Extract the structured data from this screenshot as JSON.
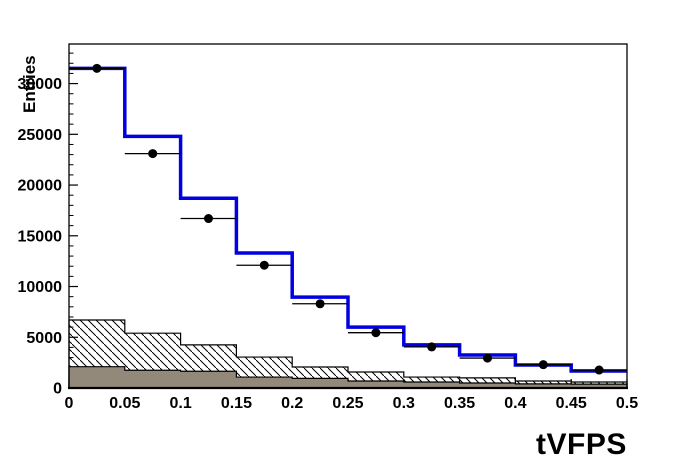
{
  "chart_data": {
    "type": "bar",
    "subtype": "step-histogram-overlay",
    "title": "tVFPS",
    "ylabel": "Entries",
    "xlabel": "",
    "xlim": [
      0,
      0.5
    ],
    "ylim": [
      0,
      33900
    ],
    "grid": false,
    "legend": "none",
    "bin_edges": [
      0,
      0.05,
      0.1,
      0.15,
      0.2,
      0.25,
      0.3,
      0.35,
      0.4,
      0.45,
      0.5
    ],
    "x_major_ticks": [
      0,
      0.05,
      0.1,
      0.15,
      0.2,
      0.25,
      0.3,
      0.35,
      0.4,
      0.45,
      0.5
    ],
    "x_tick_labels": [
      "0",
      "0.05",
      "0.1",
      "0.15",
      "0.2",
      "0.25",
      "0.3",
      "0.35",
      "0.4",
      "0.45",
      "0.5"
    ],
    "x_minor_step": 0.01,
    "y_major_ticks": [
      0,
      5000,
      10000,
      15000,
      20000,
      25000,
      30000
    ],
    "y_tick_labels": [
      "0",
      "5000",
      "10000",
      "15000",
      "20000",
      "25000",
      "30000"
    ],
    "y_minor_step": 1000,
    "series": [
      {
        "name": "hatched-histogram",
        "style": "step-fill-hatch",
        "hatch_color": "#000000",
        "outline_color": "#000000",
        "values": [
          6700,
          5400,
          4250,
          3050,
          2070,
          1580,
          1080,
          1000,
          690,
          590
        ]
      },
      {
        "name": "solid-histogram",
        "style": "step-fill",
        "fill_color": "#92897a",
        "outline_color": "#000000",
        "values": [
          2100,
          1750,
          1650,
          1080,
          950,
          690,
          590,
          490,
          410,
          380
        ]
      },
      {
        "name": "total-histogram",
        "style": "step-line",
        "line_color": "#0000e0",
        "line_width": 3.5,
        "values": [
          31500,
          24800,
          18700,
          13300,
          8950,
          6000,
          4250,
          3250,
          2270,
          1680
        ]
      },
      {
        "name": "data-points",
        "style": "points-with-xerr",
        "marker_color": "#000000",
        "marker": "circle",
        "x": [
          0.025,
          0.075,
          0.125,
          0.175,
          0.225,
          0.275,
          0.325,
          0.375,
          0.425,
          0.475
        ],
        "y": [
          31500,
          23100,
          16700,
          12100,
          8300,
          5450,
          4050,
          2950,
          2300,
          1770
        ],
        "xerr": 0.025
      }
    ]
  }
}
